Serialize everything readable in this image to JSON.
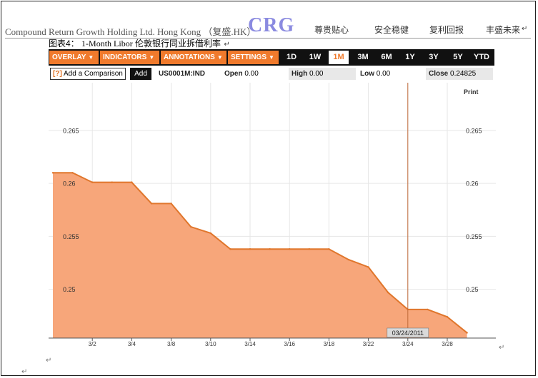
{
  "header": {
    "company": "Compound Return Growth Holding Ltd. Hong Kong （复盛.HK）",
    "logo": "CRG",
    "nav": [
      "尊贵贴心",
      "安全稳健",
      "复利回报",
      "丰盛未来"
    ]
  },
  "figure": {
    "label": "图表4：",
    "title": "1-Month Libor",
    "title_cn": "伦敦银行同业拆借利率"
  },
  "toolbar": {
    "menus": [
      "OVERLAY",
      "INDICATORS",
      "ANNOTATIONS",
      "SETTINGS"
    ],
    "ranges": [
      "1D",
      "1W",
      "1M",
      "3M",
      "6M",
      "1Y",
      "3Y",
      "5Y",
      "YTD"
    ],
    "active_range": "1M",
    "colors": {
      "bar": "#111111",
      "menu": "#f07a2c",
      "active_text": "#f07a2c"
    }
  },
  "infobar": {
    "help_mark": "[?]",
    "compare_label": "Add a Comparison",
    "add_button": "Add",
    "ticker": "US0001M:IND",
    "open_label": "Open",
    "open_value": "0.00",
    "high_label": "High",
    "high_value": "0.00",
    "low_label": "Low",
    "low_value": "0.00",
    "close_label": "Close",
    "close_value": "0.24825"
  },
  "chart_data": {
    "type": "area",
    "title": "",
    "xlabel": "",
    "ylabel": "",
    "x": [
      "2/28",
      "3/1",
      "3/2",
      "3/3",
      "3/4",
      "3/7",
      "3/8",
      "3/9",
      "3/10",
      "3/11",
      "3/14",
      "3/15",
      "3/16",
      "3/17",
      "3/18",
      "3/21",
      "3/22",
      "3/23",
      "3/24",
      "3/25",
      "3/28",
      "3/29"
    ],
    "values": [
      0.261,
      0.261,
      0.2601,
      0.2601,
      0.2601,
      0.2581,
      0.2581,
      0.2559,
      0.2553,
      0.2538,
      0.2538,
      0.2538,
      0.2538,
      0.2538,
      0.2538,
      0.2528,
      0.2521,
      0.2497,
      0.2481,
      0.2481,
      0.2474,
      0.2459
    ],
    "x_ticks": [
      "3/2",
      "3/4",
      "3/8",
      "3/10",
      "3/14",
      "3/16",
      "3/18",
      "3/22",
      "3/24",
      "3/28"
    ],
    "y_ticks": [
      "0.25",
      "0.255",
      "0.26",
      "0.265"
    ],
    "ylim": [
      0.2454,
      0.2695
    ],
    "crosshair_label": "03/24/2011",
    "print_label": "Print",
    "grid": true,
    "colors": {
      "fill": "#f7a67a",
      "line": "#e0762c",
      "crosshair": "#c06a3a"
    }
  }
}
